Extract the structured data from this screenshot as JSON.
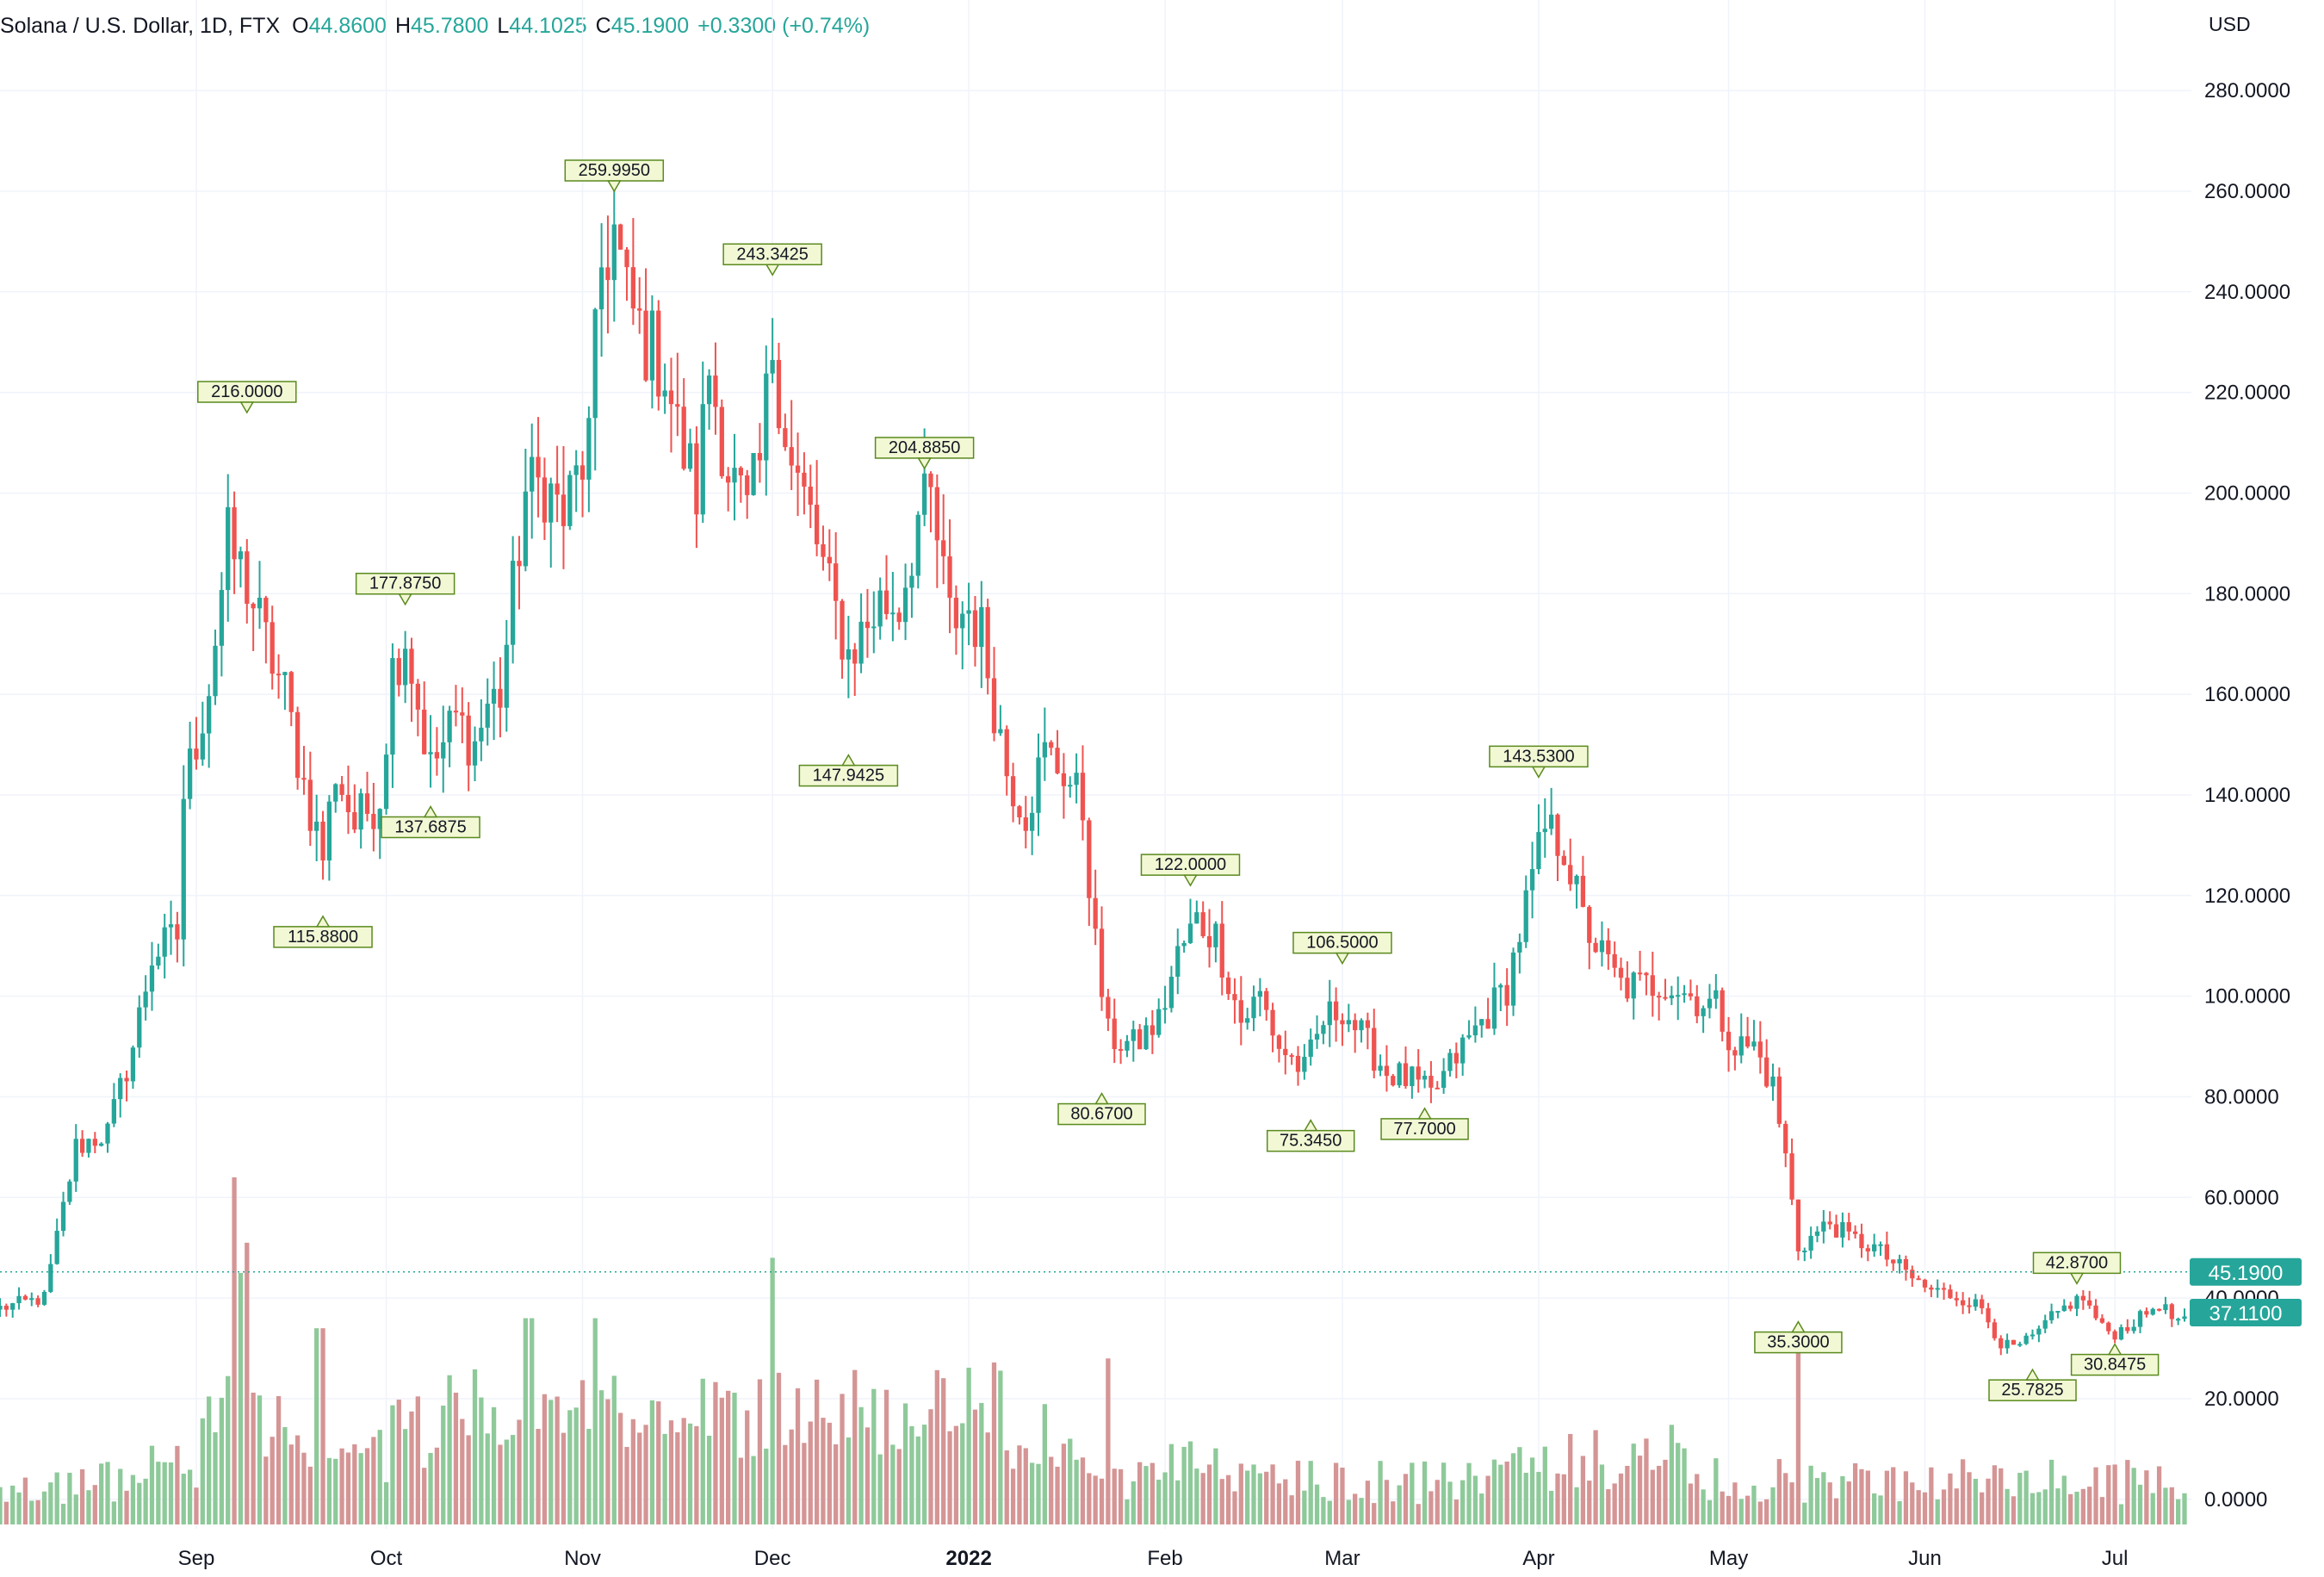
{
  "header": {
    "symbol": "Solana / U.S. Dollar, 1D, FTX",
    "o_label": "O",
    "o_value": "44.8600",
    "h_label": "H",
    "h_value": "45.7800",
    "l_label": "L",
    "l_value": "44.1025",
    "c_label": "C",
    "c_value": "45.1900",
    "change": "+0.3300 (+0.74%)"
  },
  "colors": {
    "up": "#26a69a",
    "down": "#ef5350",
    "up_volume": "#8ec99a",
    "down_volume": "#d59595",
    "grid": "#f0f3fa",
    "label_fill": "#f2f8d4",
    "label_border": "#5a8a1e",
    "price_badge": "#26a69a"
  },
  "chart_data": {
    "type": "candlestick",
    "currency_label": "USD",
    "price_axis": {
      "ticks": [
        "0.0000",
        "20.0000",
        "40.0000",
        "60.0000",
        "80.0000",
        "100.0000",
        "120.0000",
        "140.0000",
        "160.0000",
        "180.0000",
        "200.0000",
        "220.0000",
        "240.0000",
        "260.0000",
        "280.0000"
      ],
      "range": [
        -5,
        298
      ]
    },
    "time_axis": {
      "labels": [
        "Sep",
        "Oct",
        "Nov",
        "Dec",
        "2022",
        "Feb",
        "Mar",
        "Apr",
        "May",
        "Jun",
        "Jul"
      ],
      "bold": [
        "2022"
      ],
      "start": "2021-08-01",
      "end": "2022-07-12"
    },
    "current_price": "45.1900",
    "secondary_price_badge": "37.1100",
    "grid": true,
    "swing_labels": [
      {
        "date": "2021-09-09",
        "value": "216.0000",
        "pos": "above"
      },
      {
        "date": "2021-09-21",
        "value": "115.8800",
        "pos": "below"
      },
      {
        "date": "2021-10-04",
        "value": "177.8750",
        "pos": "above"
      },
      {
        "date": "2021-10-08",
        "value": "137.6875",
        "pos": "below"
      },
      {
        "date": "2021-11-06",
        "value": "259.9950",
        "pos": "above"
      },
      {
        "date": "2021-12-01",
        "value": "243.3425",
        "pos": "above"
      },
      {
        "date": "2021-12-13",
        "value": "147.9425",
        "pos": "below"
      },
      {
        "date": "2021-12-25",
        "value": "204.8850",
        "pos": "above"
      },
      {
        "date": "2022-01-22",
        "value": "80.6700",
        "pos": "below"
      },
      {
        "date": "2022-02-05",
        "value": "122.0000",
        "pos": "above"
      },
      {
        "date": "2022-02-24",
        "value": "75.3450",
        "pos": "below"
      },
      {
        "date": "2022-03-01",
        "value": "106.5000",
        "pos": "above"
      },
      {
        "date": "2022-03-14",
        "value": "77.7000",
        "pos": "below"
      },
      {
        "date": "2022-04-01",
        "value": "143.5300",
        "pos": "above"
      },
      {
        "date": "2022-05-12",
        "value": "35.3000",
        "pos": "below"
      },
      {
        "date": "2022-06-18",
        "value": "25.7825",
        "pos": "below"
      },
      {
        "date": "2022-06-25",
        "value": "42.8700",
        "pos": "above"
      },
      {
        "date": "2022-07-01",
        "value": "30.8475",
        "pos": "below"
      }
    ],
    "path_anchors": [
      [
        "2021-08-01",
        38
      ],
      [
        "2021-08-08",
        40
      ],
      [
        "2021-08-10",
        52
      ],
      [
        "2021-08-13",
        70
      ],
      [
        "2021-08-18",
        73
      ],
      [
        "2021-08-22",
        90
      ],
      [
        "2021-08-25",
        108
      ],
      [
        "2021-08-29",
        112
      ],
      [
        "2021-08-30",
        140
      ],
      [
        "2021-09-03",
        162
      ],
      [
        "2021-09-06",
        190
      ],
      [
        "2021-09-09",
        182
      ],
      [
        "2021-09-12",
        170
      ],
      [
        "2021-09-15",
        160
      ],
      [
        "2021-09-18",
        142
      ],
      [
        "2021-09-21",
        128
      ],
      [
        "2021-09-23",
        145
      ],
      [
        "2021-09-26",
        134
      ],
      [
        "2021-09-30",
        140
      ],
      [
        "2021-10-02",
        165
      ],
      [
        "2021-10-04",
        172
      ],
      [
        "2021-10-06",
        158
      ],
      [
        "2021-10-08",
        145
      ],
      [
        "2021-10-12",
        155
      ],
      [
        "2021-10-15",
        150
      ],
      [
        "2021-10-17",
        158
      ],
      [
        "2021-10-19",
        160
      ],
      [
        "2021-10-23",
        200
      ],
      [
        "2021-10-26",
        202
      ],
      [
        "2021-10-29",
        195
      ],
      [
        "2021-11-02",
        210
      ],
      [
        "2021-11-04",
        245
      ],
      [
        "2021-11-06",
        252
      ],
      [
        "2021-11-08",
        238
      ],
      [
        "2021-11-11",
        230
      ],
      [
        "2021-11-14",
        225
      ],
      [
        "2021-11-16",
        212
      ],
      [
        "2021-11-19",
        200
      ],
      [
        "2021-11-21",
        225
      ],
      [
        "2021-11-24",
        205
      ],
      [
        "2021-11-27",
        195
      ],
      [
        "2021-11-29",
        205
      ],
      [
        "2021-12-01",
        230
      ],
      [
        "2021-12-04",
        205
      ],
      [
        "2021-12-07",
        195
      ],
      [
        "2021-12-10",
        180
      ],
      [
        "2021-12-13",
        168
      ],
      [
        "2021-12-15",
        172
      ],
      [
        "2021-12-18",
        178
      ],
      [
        "2021-12-21",
        178
      ],
      [
        "2021-12-24",
        195
      ],
      [
        "2021-12-26",
        198
      ],
      [
        "2021-12-29",
        175
      ],
      [
        "2022-01-01",
        177
      ],
      [
        "2022-01-03",
        172
      ],
      [
        "2022-01-07",
        145
      ],
      [
        "2022-01-10",
        137
      ],
      [
        "2022-01-13",
        148
      ],
      [
        "2022-01-16",
        145
      ],
      [
        "2022-01-19",
        137
      ],
      [
        "2022-01-21",
        110
      ],
      [
        "2022-01-23",
        92
      ],
      [
        "2022-01-27",
        90
      ],
      [
        "2022-01-31",
        95
      ],
      [
        "2022-02-03",
        108
      ],
      [
        "2022-02-06",
        115
      ],
      [
        "2022-02-09",
        112
      ],
      [
        "2022-02-13",
        95
      ],
      [
        "2022-02-16",
        100
      ],
      [
        "2022-02-19",
        90
      ],
      [
        "2022-02-23",
        85
      ],
      [
        "2022-02-26",
        95
      ],
      [
        "2022-03-01",
        98
      ],
      [
        "2022-03-04",
        92
      ],
      [
        "2022-03-08",
        85
      ],
      [
        "2022-03-12",
        83
      ],
      [
        "2022-03-15",
        80
      ],
      [
        "2022-03-19",
        88
      ],
      [
        "2022-03-23",
        95
      ],
      [
        "2022-03-27",
        102
      ],
      [
        "2022-03-30",
        118
      ],
      [
        "2022-04-02",
        133
      ],
      [
        "2022-04-05",
        130
      ],
      [
        "2022-04-08",
        115
      ],
      [
        "2022-04-11",
        108
      ],
      [
        "2022-04-14",
        102
      ],
      [
        "2022-04-18",
        102
      ],
      [
        "2022-04-21",
        103
      ],
      [
        "2022-04-25",
        100
      ],
      [
        "2022-04-29",
        98
      ],
      [
        "2022-05-02",
        90
      ],
      [
        "2022-05-05",
        90
      ],
      [
        "2022-05-08",
        82
      ],
      [
        "2022-05-10",
        68
      ],
      [
        "2022-05-12",
        50
      ],
      [
        "2022-05-14",
        52
      ],
      [
        "2022-05-17",
        55
      ],
      [
        "2022-05-20",
        52
      ],
      [
        "2022-05-24",
        50
      ],
      [
        "2022-05-28",
        46
      ],
      [
        "2022-06-01",
        42
      ],
      [
        "2022-06-04",
        41
      ],
      [
        "2022-06-07",
        40
      ],
      [
        "2022-06-10",
        38
      ],
      [
        "2022-06-13",
        31
      ],
      [
        "2022-06-15",
        30
      ],
      [
        "2022-06-18",
        32
      ],
      [
        "2022-06-21",
        36
      ],
      [
        "2022-06-24",
        39
      ],
      [
        "2022-06-26",
        40
      ],
      [
        "2022-06-29",
        34
      ],
      [
        "2022-07-01",
        33
      ],
      [
        "2022-07-05",
        36
      ],
      [
        "2022-07-08",
        39
      ],
      [
        "2022-07-10",
        36
      ],
      [
        "2022-07-12",
        35
      ]
    ],
    "volume_spikes": [
      [
        "2021-09-07",
        69
      ],
      [
        "2021-09-08",
        50
      ],
      [
        "2021-09-09",
        56
      ],
      [
        "2021-12-01",
        53
      ],
      [
        "2021-11-03",
        41
      ],
      [
        "2022-01-23",
        33
      ],
      [
        "2022-05-12",
        38
      ],
      [
        "2021-09-20",
        39
      ],
      [
        "2021-09-21",
        39
      ],
      [
        "2021-10-23",
        41
      ],
      [
        "2021-10-24",
        41
      ]
    ]
  }
}
